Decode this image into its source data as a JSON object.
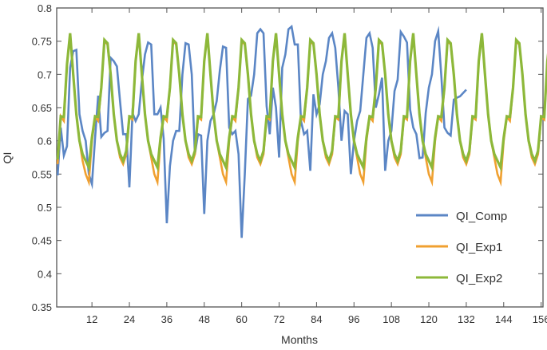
{
  "chart_data": {
    "type": "line",
    "title": "",
    "xlabel": "Months",
    "ylabel": "QI",
    "xlim": [
      0,
      157
    ],
    "ylim": [
      0.35,
      0.8
    ],
    "xticks": [
      12,
      24,
      36,
      48,
      60,
      72,
      84,
      96,
      108,
      120,
      132,
      144,
      156
    ],
    "yticks": [
      0.35,
      0.4,
      0.45,
      0.5,
      0.55,
      0.6,
      0.65,
      0.7,
      0.75,
      0.8
    ],
    "ytick_labels": [
      "0.35",
      "0.4",
      "0.45",
      "0.5",
      "0.55",
      "0.6",
      "0.65",
      "0.7",
      "0.75",
      "0.8"
    ],
    "grid": false,
    "legend_position": "lower right",
    "series": [
      {
        "name": "QI_Comp",
        "color": "#5b86c5",
        "x_start": 1,
        "values": [
          0.548,
          0.62,
          0.578,
          0.592,
          0.71,
          0.735,
          0.737,
          0.64,
          0.615,
          0.6,
          0.55,
          0.535,
          0.604,
          0.668,
          0.606,
          0.612,
          0.615,
          0.725,
          0.72,
          0.712,
          0.66,
          0.61,
          0.61,
          0.53,
          0.642,
          0.63,
          0.64,
          0.69,
          0.73,
          0.748,
          0.745,
          0.64,
          0.64,
          0.65,
          0.603,
          0.476,
          0.562,
          0.6,
          0.615,
          0.615,
          0.7,
          0.747,
          0.745,
          0.7,
          0.58,
          0.61,
          0.608,
          0.49,
          0.6,
          0.63,
          0.64,
          0.66,
          0.706,
          0.742,
          0.74,
          0.62,
          0.61,
          0.615,
          0.58,
          0.454,
          0.55,
          0.663,
          0.668,
          0.7,
          0.762,
          0.768,
          0.762,
          0.652,
          0.61,
          0.68,
          0.65,
          0.575,
          0.71,
          0.73,
          0.768,
          0.772,
          0.745,
          0.745,
          0.63,
          0.61,
          0.615,
          0.555,
          0.67,
          0.64,
          0.655,
          0.7,
          0.72,
          0.755,
          0.762,
          0.74,
          0.68,
          0.6,
          0.645,
          0.64,
          0.55,
          0.6,
          0.63,
          0.645,
          0.7,
          0.755,
          0.762,
          0.74,
          0.65,
          0.67,
          0.695,
          0.555,
          0.6,
          0.615,
          0.675,
          0.692,
          0.764,
          0.757,
          0.748,
          0.647,
          0.62,
          0.61,
          0.574,
          0.575,
          0.642,
          0.68,
          0.7,
          0.75,
          0.765,
          0.698,
          0.62,
          0.612,
          0.608,
          0.662,
          0.665,
          0.667,
          0.672,
          0.677
        ]
      },
      {
        "name": "QI_Exp1",
        "color": "#f0a030",
        "x_start": 1,
        "values": [
          0.565,
          0.637,
          0.63,
          0.715,
          0.762,
          0.7,
          0.64,
          0.6,
          0.57,
          0.55,
          0.538,
          0.6,
          0.636,
          0.63,
          0.68,
          0.75,
          0.745,
          0.7,
          0.64,
          0.6,
          0.575,
          0.565,
          0.58,
          0.636,
          0.632,
          0.72,
          0.762,
          0.7,
          0.64,
          0.6,
          0.575,
          0.55,
          0.538,
          0.6,
          0.636,
          0.63,
          0.68,
          0.75,
          0.745,
          0.7,
          0.64,
          0.6,
          0.575,
          0.565,
          0.58,
          0.636,
          0.632,
          0.72,
          0.762,
          0.7,
          0.64,
          0.6,
          0.575,
          0.55,
          0.538,
          0.6,
          0.636,
          0.63,
          0.68,
          0.75,
          0.745,
          0.7,
          0.64,
          0.6,
          0.575,
          0.565,
          0.58,
          0.636,
          0.632,
          0.72,
          0.762,
          0.7,
          0.64,
          0.6,
          0.575,
          0.55,
          0.538,
          0.6,
          0.636,
          0.63,
          0.68,
          0.75,
          0.745,
          0.7,
          0.64,
          0.6,
          0.575,
          0.565,
          0.58,
          0.636,
          0.632,
          0.72,
          0.762,
          0.7,
          0.64,
          0.6,
          0.575,
          0.55,
          0.538,
          0.6,
          0.636,
          0.63,
          0.68,
          0.75,
          0.745,
          0.7,
          0.64,
          0.6,
          0.575,
          0.565,
          0.58,
          0.636,
          0.632,
          0.72,
          0.762,
          0.7,
          0.64,
          0.6,
          0.575,
          0.55,
          0.538,
          0.6,
          0.636,
          0.63,
          0.68,
          0.75,
          0.745,
          0.7,
          0.64,
          0.6,
          0.575,
          0.565,
          0.58,
          0.636,
          0.632,
          0.72,
          0.762,
          0.7,
          0.64,
          0.6,
          0.575,
          0.55,
          0.538,
          0.6,
          0.636,
          0.63,
          0.68,
          0.75,
          0.745,
          0.7,
          0.64,
          0.6,
          0.575,
          0.565,
          0.58,
          0.636,
          0.632,
          0.72,
          0.762,
          0.7,
          0.64,
          0.6,
          0.538
        ]
      },
      {
        "name": "QI_Exp2",
        "color": "#8db83a",
        "x_start": 1,
        "values": [
          0.572,
          0.637,
          0.636,
          0.715,
          0.762,
          0.7,
          0.64,
          0.6,
          0.58,
          0.57,
          0.56,
          0.605,
          0.637,
          0.636,
          0.68,
          0.752,
          0.747,
          0.7,
          0.64,
          0.6,
          0.58,
          0.57,
          0.585,
          0.637,
          0.636,
          0.72,
          0.762,
          0.7,
          0.64,
          0.6,
          0.58,
          0.57,
          0.56,
          0.605,
          0.637,
          0.636,
          0.68,
          0.752,
          0.747,
          0.7,
          0.64,
          0.6,
          0.58,
          0.57,
          0.585,
          0.637,
          0.636,
          0.72,
          0.762,
          0.7,
          0.64,
          0.6,
          0.58,
          0.57,
          0.56,
          0.605,
          0.637,
          0.636,
          0.68,
          0.752,
          0.747,
          0.7,
          0.64,
          0.6,
          0.58,
          0.57,
          0.585,
          0.637,
          0.636,
          0.72,
          0.762,
          0.7,
          0.64,
          0.6,
          0.58,
          0.57,
          0.56,
          0.605,
          0.637,
          0.636,
          0.68,
          0.752,
          0.747,
          0.7,
          0.64,
          0.6,
          0.58,
          0.57,
          0.585,
          0.637,
          0.636,
          0.72,
          0.762,
          0.7,
          0.64,
          0.6,
          0.58,
          0.57,
          0.56,
          0.605,
          0.637,
          0.636,
          0.68,
          0.752,
          0.747,
          0.7,
          0.64,
          0.6,
          0.58,
          0.57,
          0.585,
          0.637,
          0.636,
          0.72,
          0.762,
          0.7,
          0.64,
          0.6,
          0.58,
          0.57,
          0.56,
          0.605,
          0.637,
          0.636,
          0.68,
          0.752,
          0.747,
          0.7,
          0.64,
          0.6,
          0.58,
          0.57,
          0.585,
          0.637,
          0.636,
          0.72,
          0.762,
          0.7,
          0.64,
          0.6,
          0.58,
          0.57,
          0.56,
          0.605,
          0.637,
          0.636,
          0.68,
          0.752,
          0.747,
          0.7,
          0.64,
          0.6,
          0.58,
          0.57,
          0.585,
          0.637,
          0.636,
          0.72,
          0.762,
          0.7,
          0.64,
          0.6,
          0.56
        ]
      }
    ]
  },
  "legend": {
    "items": [
      {
        "label": "QI_Comp",
        "color": "#5b86c5"
      },
      {
        "label": "QI_Exp1",
        "color": "#f0a030"
      },
      {
        "label": "QI_Exp2",
        "color": "#8db83a"
      }
    ]
  },
  "axes": {
    "xlabel": "Months",
    "ylabel": "QI"
  }
}
